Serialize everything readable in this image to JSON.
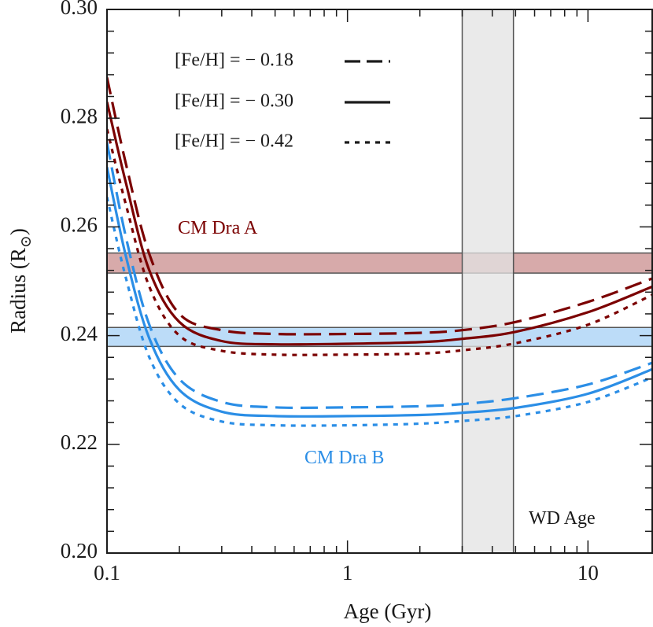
{
  "chart_data": {
    "type": "line",
    "xlabel": "Age (Gyr)",
    "ylabel": "Radius (R",
    "ylabel_subscript": "⊙",
    "ylabel_close": ")",
    "x_scale": "log",
    "xlim": [
      0.1,
      18.5
    ],
    "ylim": [
      0.2,
      0.3
    ],
    "x_ticks": [
      {
        "value": 0.1,
        "label": "0.1"
      },
      {
        "value": 1,
        "label": "1"
      },
      {
        "value": 10,
        "label": "10"
      }
    ],
    "y_ticks": [
      {
        "value": 0.2,
        "label": "0.20"
      },
      {
        "value": 0.22,
        "label": "0.22"
      },
      {
        "value": 0.24,
        "label": "0.24"
      },
      {
        "value": 0.26,
        "label": "0.26"
      },
      {
        "value": 0.28,
        "label": "0.28"
      },
      {
        "value": 0.3,
        "label": "0.30"
      }
    ],
    "colors": {
      "star_a": "#7b0000",
      "star_b": "#2b8ee6",
      "band_a": "#d7aaaa",
      "band_b": "#bcdcf8",
      "wd_band": "#e3e3e3"
    },
    "bands": [
      {
        "label": "CM Dra A",
        "y": [
          0.2515,
          0.2552
        ],
        "color": "#d7aaaa"
      },
      {
        "label": "CM Dra B",
        "y": [
          0.238,
          0.2415
        ],
        "color": "#bcdcf8"
      }
    ],
    "wd_age": {
      "label": "WD Age",
      "x": [
        3.0,
        4.9
      ]
    },
    "legend": {
      "position": "top-center",
      "entries": [
        {
          "label": "[Fe/H] = − 0.18",
          "style": "dashed"
        },
        {
          "label": "[Fe/H] = − 0.30",
          "style": "solid"
        },
        {
          "label": "[Fe/H] = − 0.42",
          "style": "dotted"
        }
      ]
    },
    "annotations": [
      {
        "text": "CM Dra A",
        "color": "#7b0000"
      },
      {
        "text": "CM Dra B",
        "color": "#2b8ee6"
      }
    ],
    "series": [
      {
        "star": "A",
        "style": "dashed",
        "x": [
          0.1,
          0.12,
          0.15,
          0.2,
          0.3,
          0.5,
          1,
          2,
          3,
          5,
          10,
          18.5
        ],
        "values": [
          0.2875,
          0.2715,
          0.255,
          0.244,
          0.241,
          0.2403,
          0.2403,
          0.2405,
          0.241,
          0.2425,
          0.2462,
          0.2505
        ]
      },
      {
        "star": "A",
        "style": "solid",
        "x": [
          0.1,
          0.12,
          0.15,
          0.2,
          0.3,
          0.5,
          1,
          2,
          3,
          5,
          10,
          18.5
        ],
        "values": [
          0.283,
          0.268,
          0.252,
          0.2425,
          0.239,
          0.2384,
          0.2385,
          0.2388,
          0.2394,
          0.2407,
          0.2443,
          0.249
        ]
      },
      {
        "star": "A",
        "style": "dotted",
        "x": [
          0.1,
          0.12,
          0.15,
          0.2,
          0.3,
          0.5,
          1,
          2,
          3,
          5,
          10,
          18.5
        ],
        "values": [
          0.278,
          0.264,
          0.249,
          0.24,
          0.2372,
          0.2365,
          0.2365,
          0.2367,
          0.2373,
          0.2386,
          0.242,
          0.2475
        ]
      },
      {
        "star": "B",
        "style": "dashed",
        "x": [
          0.1,
          0.12,
          0.15,
          0.2,
          0.3,
          0.5,
          1,
          2,
          3,
          5,
          10,
          18.5
        ],
        "values": [
          0.2755,
          0.258,
          0.242,
          0.232,
          0.2278,
          0.2268,
          0.2268,
          0.227,
          0.2274,
          0.2285,
          0.231,
          0.235
        ]
      },
      {
        "star": "B",
        "style": "solid",
        "x": [
          0.1,
          0.12,
          0.15,
          0.2,
          0.3,
          0.5,
          1,
          2,
          3,
          5,
          10,
          18.5
        ],
        "values": [
          0.271,
          0.2545,
          0.2395,
          0.23,
          0.226,
          0.2252,
          0.2252,
          0.2254,
          0.2258,
          0.2267,
          0.2293,
          0.2338
        ]
      },
      {
        "star": "B",
        "style": "dotted",
        "x": [
          0.1,
          0.12,
          0.15,
          0.2,
          0.3,
          0.5,
          1,
          2,
          3,
          5,
          10,
          18.5
        ],
        "values": [
          0.2655,
          0.2505,
          0.236,
          0.2275,
          0.2242,
          0.2235,
          0.2235,
          0.2238,
          0.2243,
          0.2252,
          0.2278,
          0.2323
        ]
      }
    ]
  }
}
